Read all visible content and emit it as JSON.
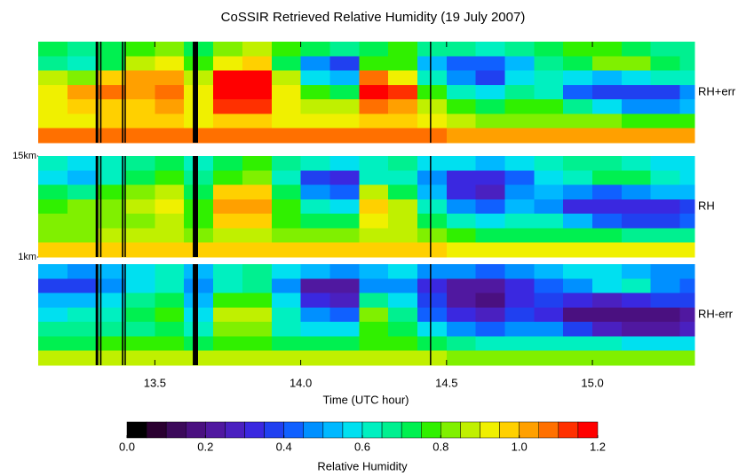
{
  "chart_data": {
    "type": "heatmap",
    "title": "CoSSIR Retrieved Relative Humidity (19 July 2007)",
    "xlabel": "Time (UTC hour)",
    "xlim": [
      13.1,
      15.35
    ],
    "xticks": [
      13.5,
      {
        "value": 14.0,
        "label": "14.0"
      },
      14.5,
      {
        "value": 15.0,
        "label": "15.0"
      }
    ],
    "ylim": [
      1,
      15
    ],
    "yticks": [
      {
        "value": 15,
        "label": "15km"
      },
      {
        "value": 1,
        "label": "1km"
      }
    ],
    "x_bins": [
      13.1,
      13.2,
      13.3,
      13.4,
      13.5,
      13.6,
      13.7,
      13.8,
      13.9,
      14.0,
      14.1,
      14.2,
      14.3,
      14.4,
      14.5,
      14.6,
      14.7,
      14.8,
      14.9,
      15.0,
      15.1,
      15.2,
      15.3,
      15.35
    ],
    "altitude_bins": [
      15,
      13,
      11,
      9,
      7,
      5,
      3,
      1
    ],
    "data_gaps": [
      [
        13.297,
        13.306
      ],
      [
        13.312,
        13.317
      ],
      [
        13.387,
        13.392
      ],
      [
        13.396,
        13.4
      ],
      [
        13.63,
        13.648
      ],
      [
        14.443,
        14.447
      ]
    ],
    "panels": [
      {
        "label": "RH+err",
        "values": [
          [
            0.7,
            0.65,
            0.7,
            0.75,
            0.8,
            0.7,
            0.8,
            0.85,
            0.75,
            0.7,
            0.65,
            0.7,
            0.75,
            0.65,
            0.65,
            0.6,
            0.65,
            0.7,
            0.75,
            0.75,
            0.7,
            0.65,
            0.65
          ],
          [
            0.65,
            0.6,
            0.7,
            0.85,
            0.9,
            0.75,
            0.9,
            0.95,
            0.7,
            0.45,
            0.35,
            0.75,
            0.75,
            0.5,
            0.4,
            0.4,
            0.5,
            0.65,
            0.7,
            0.8,
            0.8,
            0.7,
            0.65
          ],
          [
            0.85,
            0.8,
            0.95,
            1.0,
            1.0,
            0.85,
            1.15,
            1.15,
            0.85,
            0.55,
            0.5,
            1.05,
            0.9,
            0.6,
            0.45,
            0.35,
            0.55,
            0.6,
            0.55,
            0.5,
            0.55,
            0.6,
            0.6
          ],
          [
            0.9,
            1.0,
            1.05,
            1.0,
            1.05,
            0.9,
            1.2,
            1.2,
            0.9,
            0.75,
            0.7,
            1.15,
            1.1,
            0.75,
            0.6,
            0.55,
            0.65,
            0.6,
            0.4,
            0.35,
            0.35,
            0.35,
            0.45
          ],
          [
            0.9,
            0.95,
            0.95,
            0.95,
            1.0,
            0.9,
            1.1,
            1.1,
            0.9,
            0.85,
            0.85,
            1.05,
            1.0,
            0.85,
            0.75,
            0.7,
            0.75,
            0.75,
            0.65,
            0.55,
            0.45,
            0.45,
            0.5
          ],
          [
            0.9,
            0.9,
            0.95,
            0.95,
            0.95,
            0.9,
            0.95,
            0.95,
            0.9,
            0.9,
            0.9,
            0.95,
            0.95,
            0.9,
            0.85,
            0.8,
            0.8,
            0.8,
            0.8,
            0.8,
            0.75,
            0.75,
            0.75
          ],
          [
            1.05,
            1.05,
            1.05,
            1.05,
            1.05,
            1.05,
            1.05,
            1.05,
            1.05,
            1.05,
            1.05,
            1.05,
            1.05,
            1.05,
            1.0,
            1.0,
            1.0,
            1.0,
            1.0,
            1.0,
            1.0,
            1.0,
            1.0
          ]
        ]
      },
      {
        "label": "RH",
        "values": [
          [
            0.6,
            0.55,
            0.6,
            0.65,
            0.7,
            0.6,
            0.7,
            0.75,
            0.65,
            0.6,
            0.55,
            0.6,
            0.65,
            0.55,
            0.55,
            0.5,
            0.55,
            0.6,
            0.65,
            0.65,
            0.6,
            0.55,
            0.55
          ],
          [
            0.55,
            0.5,
            0.6,
            0.7,
            0.75,
            0.65,
            0.75,
            0.8,
            0.6,
            0.35,
            0.3,
            0.6,
            0.6,
            0.45,
            0.3,
            0.3,
            0.4,
            0.55,
            0.6,
            0.7,
            0.7,
            0.6,
            0.55
          ],
          [
            0.7,
            0.65,
            0.75,
            0.8,
            0.85,
            0.7,
            0.95,
            0.95,
            0.7,
            0.45,
            0.4,
            0.85,
            0.7,
            0.5,
            0.3,
            0.25,
            0.45,
            0.5,
            0.45,
            0.4,
            0.45,
            0.5,
            0.5
          ],
          [
            0.75,
            0.8,
            0.8,
            0.85,
            0.9,
            0.75,
            1.0,
            1.0,
            0.75,
            0.6,
            0.55,
            0.95,
            0.85,
            0.6,
            0.45,
            0.4,
            0.5,
            0.45,
            0.3,
            0.3,
            0.3,
            0.3,
            0.35
          ],
          [
            0.8,
            0.8,
            0.8,
            0.8,
            0.85,
            0.75,
            0.95,
            0.95,
            0.75,
            0.7,
            0.7,
            0.9,
            0.85,
            0.7,
            0.6,
            0.55,
            0.6,
            0.6,
            0.5,
            0.4,
            0.35,
            0.35,
            0.4
          ],
          [
            0.8,
            0.8,
            0.85,
            0.85,
            0.85,
            0.8,
            0.85,
            0.85,
            0.8,
            0.8,
            0.8,
            0.85,
            0.85,
            0.8,
            0.75,
            0.7,
            0.7,
            0.7,
            0.7,
            0.7,
            0.65,
            0.65,
            0.65
          ],
          [
            0.95,
            0.95,
            0.95,
            0.95,
            0.95,
            0.95,
            0.95,
            0.95,
            0.95,
            0.95,
            0.95,
            0.95,
            0.95,
            0.95,
            0.9,
            0.9,
            0.9,
            0.9,
            0.9,
            0.9,
            0.9,
            0.9,
            0.9
          ]
        ]
      },
      {
        "label": "RH-err",
        "values": [
          [
            0.5,
            0.45,
            0.5,
            0.55,
            0.6,
            0.5,
            0.6,
            0.65,
            0.55,
            0.5,
            0.45,
            0.5,
            0.55,
            0.45,
            0.45,
            0.4,
            0.45,
            0.5,
            0.55,
            0.55,
            0.5,
            0.45,
            0.45
          ],
          [
            0.35,
            0.35,
            0.45,
            0.55,
            0.6,
            0.45,
            0.6,
            0.65,
            0.45,
            0.2,
            0.2,
            0.45,
            0.45,
            0.3,
            0.2,
            0.2,
            0.3,
            0.4,
            0.45,
            0.55,
            0.6,
            0.45,
            0.4
          ],
          [
            0.5,
            0.5,
            0.55,
            0.65,
            0.7,
            0.5,
            0.75,
            0.75,
            0.55,
            0.3,
            0.25,
            0.65,
            0.55,
            0.35,
            0.2,
            0.15,
            0.3,
            0.35,
            0.3,
            0.25,
            0.3,
            0.35,
            0.35
          ],
          [
            0.55,
            0.6,
            0.6,
            0.7,
            0.75,
            0.55,
            0.85,
            0.85,
            0.6,
            0.45,
            0.4,
            0.8,
            0.65,
            0.4,
            0.3,
            0.25,
            0.35,
            0.3,
            0.15,
            0.15,
            0.15,
            0.15,
            0.2
          ],
          [
            0.65,
            0.65,
            0.65,
            0.65,
            0.7,
            0.6,
            0.8,
            0.8,
            0.6,
            0.55,
            0.55,
            0.75,
            0.7,
            0.55,
            0.45,
            0.4,
            0.45,
            0.45,
            0.35,
            0.25,
            0.2,
            0.2,
            0.25
          ],
          [
            0.7,
            0.7,
            0.75,
            0.75,
            0.75,
            0.7,
            0.75,
            0.75,
            0.7,
            0.7,
            0.7,
            0.75,
            0.75,
            0.7,
            0.65,
            0.6,
            0.6,
            0.6,
            0.6,
            0.6,
            0.55,
            0.55,
            0.55
          ],
          [
            0.85,
            0.85,
            0.85,
            0.85,
            0.85,
            0.85,
            0.85,
            0.85,
            0.85,
            0.85,
            0.85,
            0.85,
            0.85,
            0.85,
            0.8,
            0.8,
            0.8,
            0.8,
            0.8,
            0.8,
            0.8,
            0.8,
            0.8
          ]
        ]
      }
    ],
    "colorbar_label": "Relative Humidity",
    "clim": [
      0,
      1.2
    ],
    "cticks": [
      {
        "value": 0,
        "label": "0.0"
      },
      0.2,
      0.4,
      0.6,
      0.8,
      {
        "value": 1.0,
        "label": "1.0"
      },
      1.2
    ],
    "colormap": [
      "#000000",
      "#2a0030",
      "#3c0a5a",
      "#4a1080",
      "#5018a0",
      "#4a20c0",
      "#3a28e0",
      "#2040f0",
      "#1060ff",
      "#0090ff",
      "#00b8ff",
      "#00e0f0",
      "#00f0c0",
      "#00f090",
      "#00f050",
      "#30f000",
      "#80f000",
      "#c0f000",
      "#f0f000",
      "#ffd000",
      "#ffa000",
      "#ff7000",
      "#ff3000",
      "#ff0000"
    ],
    "gap_color": "#000000"
  }
}
